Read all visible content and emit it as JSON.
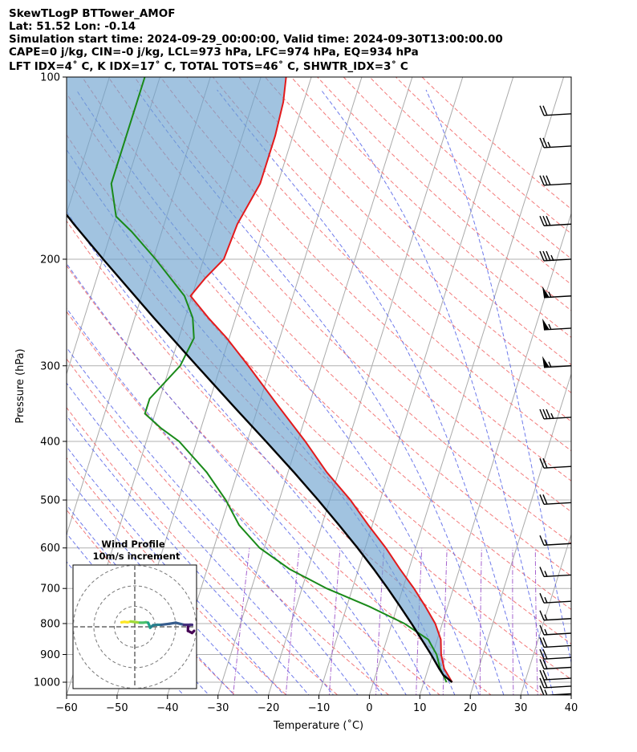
{
  "title_lines": [
    "SkewTLogP BTTower_AMOF",
    "Lat: 51.52   Lon: -0.14",
    "Simulation start time: 2024-09-29_00:00:00, Valid time: 2024-09-30T13:00:00.00",
    "CAPE=0 j/kg, CIN=-0 j/kg, LCL=973 hPa, LFC=974 hPa, EQ=934 hPa",
    "LFT IDX=4˚ C, K IDX=17˚ C, TOTAL TOTS=46˚ C, SHWTR_IDX=3˚ C"
  ],
  "colors": {
    "temperature": "#e31a1c",
    "dewpoint": "#1a8a1a",
    "parcel": "#000000",
    "shading": "#6fa3cf",
    "dry_adiabat": "#f26b6b",
    "moist_adiabat": "#5563e8",
    "mixing_ratio": "#9b51c9",
    "isotherm": "#aaaaaa"
  },
  "chart_data": {
    "type": "line",
    "subtype": "skew-t log-p",
    "xlabel": "Temperature (˚C)",
    "ylabel": "Pressure (hPa)",
    "xlim": [
      -60,
      40
    ],
    "ylim": [
      1050,
      100
    ],
    "x_ticks": [
      "−60",
      "−50",
      "−40",
      "−30",
      "−20",
      "−10",
      "0",
      "10",
      "20",
      "30",
      "40"
    ],
    "x_tick_values": [
      -60,
      -50,
      -40,
      -30,
      -20,
      -10,
      0,
      10,
      20,
      30,
      40
    ],
    "y_ticks": [
      "1000",
      "900",
      "800",
      "700",
      "600",
      "500",
      "400",
      "300",
      "200",
      "100"
    ],
    "y_tick_values": [
      1000,
      900,
      800,
      700,
      600,
      500,
      400,
      300,
      200,
      100
    ],
    "grid": true,
    "series": [
      {
        "name": "Temperature",
        "pressure": [
          1000,
          950,
          900,
          850,
          800,
          750,
          700,
          650,
          600,
          550,
          500,
          450,
          400,
          350,
          300,
          270,
          250,
          230,
          215,
          200,
          175,
          150,
          125,
          110,
          100
        ],
        "temp": [
          15.6,
          13.2,
          11.7,
          10.7,
          8.6,
          5.6,
          2.2,
          -1.8,
          -5.9,
          -10.8,
          -15.9,
          -22.3,
          -28.5,
          -36.0,
          -44.5,
          -50.5,
          -55.4,
          -60.3,
          -58.5,
          -56.0,
          -55.5,
          -53.5,
          -53.5,
          -54.0,
          -55.0
        ]
      },
      {
        "name": "Dewpoint",
        "pressure": [
          1000,
          950,
          900,
          850,
          800,
          750,
          700,
          650,
          600,
          550,
          500,
          450,
          400,
          380,
          360,
          340,
          300,
          270,
          250,
          230,
          200,
          180,
          170,
          150,
          125,
          100
        ],
        "temp": [
          14.5,
          12.4,
          10.8,
          8.2,
          2.5,
          -5.5,
          -15.1,
          -23.7,
          -30.9,
          -36.4,
          -40.6,
          -46.1,
          -53.5,
          -58.0,
          -62.0,
          -62.0,
          -58.0,
          -57.0,
          -58.5,
          -61.5,
          -69.5,
          -76.0,
          -80.0,
          -83.0,
          -83.0,
          -83.0
        ]
      },
      {
        "name": "Parcel profile",
        "pressure": [
          1000,
          973,
          950,
          900,
          850,
          800,
          750,
          700,
          650,
          600,
          550,
          500,
          450,
          400,
          350,
          300,
          250,
          200,
          175,
          150,
          125,
          100
        ],
        "temp": [
          15.6,
          13.4,
          12.2,
          9.7,
          6.9,
          3.9,
          0.6,
          -3.0,
          -7.0,
          -11.5,
          -16.6,
          -22.3,
          -28.8,
          -36.3,
          -44.9,
          -54.7,
          -66.2,
          -79.9,
          -87.9,
          -96.7,
          -106.6,
          -118.1
        ]
      }
    ],
    "barbs_knots": [
      {
        "pressure": 1045,
        "speed": 15
      },
      {
        "pressure": 1015,
        "speed": 20
      },
      {
        "pressure": 985,
        "speed": 20
      },
      {
        "pressure": 945,
        "speed": 20
      },
      {
        "pressure": 910,
        "speed": 20
      },
      {
        "pressure": 870,
        "speed": 20
      },
      {
        "pressure": 830,
        "speed": 15
      },
      {
        "pressure": 785,
        "speed": 15
      },
      {
        "pressure": 735,
        "speed": 15
      },
      {
        "pressure": 665,
        "speed": 15
      },
      {
        "pressure": 590,
        "speed": 15
      },
      {
        "pressure": 505,
        "speed": 20
      },
      {
        "pressure": 440,
        "speed": 20
      },
      {
        "pressure": 365,
        "speed": 35
      },
      {
        "pressure": 300,
        "speed": 55
      },
      {
        "pressure": 260,
        "speed": 55
      },
      {
        "pressure": 230,
        "speed": 55
      },
      {
        "pressure": 200,
        "speed": 35
      },
      {
        "pressure": 175,
        "speed": 30
      },
      {
        "pressure": 150,
        "speed": 30
      },
      {
        "pressure": 130,
        "speed": 25
      },
      {
        "pressure": 115,
        "speed": 20
      }
    ],
    "inset": {
      "title": "Wind Profile",
      "subtitle": "10m/s increment",
      "rings_ms": [
        10,
        20,
        30
      ],
      "hodograph_uv": [
        [
          29,
          -2
        ],
        [
          28,
          -3
        ],
        [
          26,
          -2
        ],
        [
          26,
          0
        ],
        [
          27,
          1
        ],
        [
          28,
          1
        ],
        [
          24,
          1
        ],
        [
          20,
          2
        ],
        [
          17,
          1.5
        ],
        [
          13,
          1
        ],
        [
          11,
          1
        ],
        [
          9,
          0.8
        ],
        [
          8,
          0
        ],
        [
          7.5,
          -0.5
        ],
        [
          7,
          1
        ],
        [
          6.5,
          2
        ],
        [
          5.5,
          2.2
        ],
        [
          4,
          2
        ],
        [
          2.5,
          2
        ],
        [
          1,
          2.2
        ],
        [
          -0.5,
          2.4
        ],
        [
          -2,
          2.6
        ],
        [
          -3.5,
          2.2
        ],
        [
          -5,
          2.4
        ],
        [
          -6.5,
          2.2
        ]
      ]
    }
  }
}
